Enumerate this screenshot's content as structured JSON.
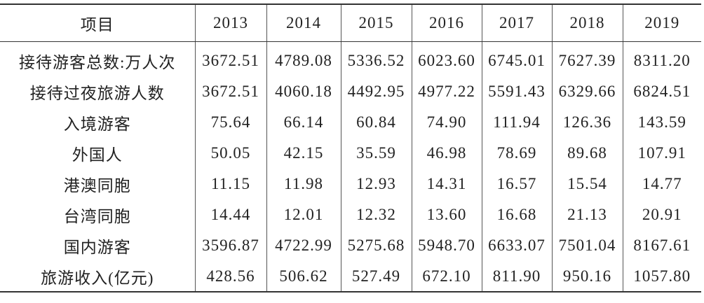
{
  "table": {
    "header": [
      "项目",
      "2013",
      "2014",
      "2015",
      "2016",
      "2017",
      "2018",
      "2019"
    ],
    "rows": [
      [
        "接待游客总数:万人次",
        "3672.51",
        "4789.08",
        "5336.52",
        "6023.60",
        "6745.01",
        "7627.39",
        "8311.20"
      ],
      [
        "接待过夜旅游人数",
        "3672.51",
        "4060.18",
        "4492.95",
        "4977.22",
        "5591.43",
        "6329.66",
        "6824.51"
      ],
      [
        "入境游客",
        "75.64",
        "66.14",
        "60.84",
        "74.90",
        "111.94",
        "126.36",
        "143.59"
      ],
      [
        "外国人",
        "50.05",
        "42.15",
        "35.59",
        "46.98",
        "78.69",
        "89.68",
        "107.91"
      ],
      [
        "港澳同胞",
        "11.15",
        "11.98",
        "12.93",
        "14.31",
        "16.57",
        "15.54",
        "14.77"
      ],
      [
        "台湾同胞",
        "14.44",
        "12.01",
        "12.32",
        "13.60",
        "16.68",
        "21.13",
        "20.91"
      ],
      [
        "国内游客",
        "3596.87",
        "4722.99",
        "5275.68",
        "5948.70",
        "6633.07",
        "7501.04",
        "8167.61"
      ],
      [
        "旅游收入(亿元)",
        "428.56",
        "506.62",
        "527.49",
        "672.10",
        "811.90",
        "950.16",
        "1057.80"
      ]
    ]
  }
}
